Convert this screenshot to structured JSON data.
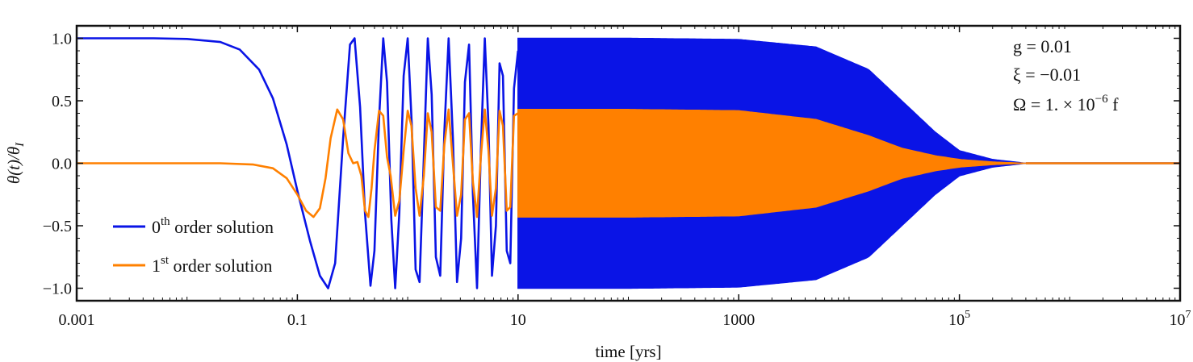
{
  "chart_data": {
    "type": "line",
    "x_scale": "log",
    "xlim": [
      0.001,
      10000000
    ],
    "ylim": [
      -1.1,
      1.1
    ],
    "xlabel": "time [yrs]",
    "ylabel": "θ(t)/θ",
    "ylabel_sub": "I",
    "x_ticks": [
      {
        "value": 0.001,
        "base": "0.001",
        "sup": ""
      },
      {
        "value": 0.1,
        "base": "0.1",
        "sup": ""
      },
      {
        "value": 10,
        "base": "10",
        "sup": ""
      },
      {
        "value": 1000,
        "base": "1000",
        "sup": ""
      },
      {
        "value": 100000,
        "base": "10",
        "sup": "5"
      },
      {
        "value": 10000000,
        "base": "10",
        "sup": "7"
      }
    ],
    "y_ticks": [
      {
        "value": 1.0,
        "label": "1.0"
      },
      {
        "value": 0.5,
        "label": "0.5"
      },
      {
        "value": 0.0,
        "label": "0.0"
      },
      {
        "value": -0.5,
        "label": "−0.5"
      },
      {
        "value": -1.0,
        "label": "−1.0"
      }
    ],
    "grid": false,
    "legend_position": "bottom-left",
    "annotations": {
      "g": {
        "text": "g = 0.01"
      },
      "xi": {
        "text": "ξ = −0.01"
      },
      "omega": {
        "pre": "Ω = 1. × 10",
        "sup": "−6",
        "post": " f"
      }
    },
    "series": [
      {
        "name_base": "0",
        "name_sup": "th",
        "name_rest": " order solution",
        "color": "#0a14e6",
        "envelope": [
          [
            0.001,
            1.0
          ],
          [
            0.02,
            1.0
          ],
          [
            10,
            1.0
          ],
          [
            100,
            1.0
          ],
          [
            1000,
            0.99
          ],
          [
            5000,
            0.93
          ],
          [
            15000,
            0.75
          ],
          [
            30000,
            0.5
          ],
          [
            60000,
            0.25
          ],
          [
            100000,
            0.1
          ],
          [
            200000,
            0.03
          ],
          [
            400000,
            0.0
          ],
          [
            10000000,
            0.0
          ]
        ],
        "points": [
          [
            0.001,
            1.0
          ],
          [
            0.005,
            1.0
          ],
          [
            0.01,
            0.995
          ],
          [
            0.02,
            0.97
          ],
          [
            0.03,
            0.91
          ],
          [
            0.045,
            0.75
          ],
          [
            0.06,
            0.52
          ],
          [
            0.08,
            0.15
          ],
          [
            0.1,
            -0.22
          ],
          [
            0.13,
            -0.62
          ],
          [
            0.16,
            -0.9
          ],
          [
            0.19,
            -1.0
          ],
          [
            0.22,
            -0.8
          ],
          [
            0.26,
            0.2
          ],
          [
            0.3,
            0.95
          ],
          [
            0.33,
            1.0
          ],
          [
            0.37,
            0.45
          ],
          [
            0.41,
            -0.4
          ],
          [
            0.46,
            -0.98
          ],
          [
            0.5,
            -0.7
          ],
          [
            0.55,
            0.35
          ],
          [
            0.6,
            1.0
          ],
          [
            0.65,
            0.65
          ],
          [
            0.71,
            -0.45
          ],
          [
            0.77,
            -1.0
          ],
          [
            0.84,
            -0.4
          ],
          [
            0.92,
            0.7
          ],
          [
            1.0,
            1.0
          ],
          [
            1.09,
            0.3
          ],
          [
            1.18,
            -0.85
          ],
          [
            1.28,
            -0.95
          ],
          [
            1.4,
            0.05
          ],
          [
            1.52,
            1.0
          ],
          [
            1.65,
            0.55
          ],
          [
            1.8,
            -0.75
          ],
          [
            1.97,
            -0.9
          ],
          [
            2.15,
            0.25
          ],
          [
            2.35,
            1.0
          ],
          [
            2.57,
            0.2
          ],
          [
            2.8,
            -0.95
          ],
          [
            3.05,
            -0.6
          ],
          [
            3.3,
            0.65
          ],
          [
            3.6,
            0.95
          ],
          [
            3.9,
            -0.25
          ],
          [
            4.25,
            -1.0
          ],
          [
            4.6,
            0.1
          ],
          [
            5.0,
            1.0
          ],
          [
            5.4,
            0.3
          ],
          [
            5.8,
            -0.9
          ],
          [
            6.3,
            -0.5
          ],
          [
            6.8,
            0.8
          ],
          [
            7.3,
            0.7
          ],
          [
            7.9,
            -0.7
          ],
          [
            8.5,
            -0.8
          ],
          [
            9.2,
            0.6
          ],
          [
            10.0,
            0.9
          ]
        ]
      },
      {
        "name_base": "1",
        "name_sup": "st",
        "name_rest": " order solution",
        "color": "#ff8000",
        "envelope": [
          [
            0.001,
            0.0
          ],
          [
            10,
            0.43
          ],
          [
            100,
            0.43
          ],
          [
            1000,
            0.42
          ],
          [
            5000,
            0.35
          ],
          [
            15000,
            0.22
          ],
          [
            30000,
            0.12
          ],
          [
            60000,
            0.06
          ],
          [
            100000,
            0.03
          ],
          [
            200000,
            0.01
          ],
          [
            400000,
            0.0
          ],
          [
            10000000,
            0.0
          ]
        ],
        "points": [
          [
            0.001,
            0.0
          ],
          [
            0.02,
            0.0
          ],
          [
            0.04,
            -0.01
          ],
          [
            0.06,
            -0.04
          ],
          [
            0.08,
            -0.12
          ],
          [
            0.1,
            -0.25
          ],
          [
            0.12,
            -0.38
          ],
          [
            0.14,
            -0.43
          ],
          [
            0.16,
            -0.36
          ],
          [
            0.18,
            -0.12
          ],
          [
            0.2,
            0.2
          ],
          [
            0.23,
            0.43
          ],
          [
            0.26,
            0.35
          ],
          [
            0.29,
            0.08
          ],
          [
            0.32,
            0.0
          ],
          [
            0.35,
            0.01
          ],
          [
            0.38,
            -0.1
          ],
          [
            0.41,
            -0.38
          ],
          [
            0.44,
            -0.43
          ],
          [
            0.47,
            -0.2
          ],
          [
            0.5,
            0.1
          ],
          [
            0.55,
            0.42
          ],
          [
            0.6,
            0.38
          ],
          [
            0.65,
            0.05
          ],
          [
            0.7,
            -0.1
          ],
          [
            0.77,
            -0.42
          ],
          [
            0.84,
            -0.3
          ],
          [
            0.92,
            0.1
          ],
          [
            1.0,
            0.42
          ],
          [
            1.08,
            0.3
          ],
          [
            1.18,
            -0.2
          ],
          [
            1.28,
            -0.42
          ],
          [
            1.4,
            -0.1
          ],
          [
            1.52,
            0.4
          ],
          [
            1.65,
            0.25
          ],
          [
            1.8,
            -0.35
          ],
          [
            1.97,
            -0.38
          ],
          [
            2.15,
            0.15
          ],
          [
            2.35,
            0.43
          ],
          [
            2.57,
            0.0
          ],
          [
            2.8,
            -0.42
          ],
          [
            3.05,
            -0.25
          ],
          [
            3.3,
            0.35
          ],
          [
            3.6,
            0.4
          ],
          [
            3.9,
            -0.15
          ],
          [
            4.25,
            -0.43
          ],
          [
            4.6,
            0.05
          ],
          [
            5.0,
            0.43
          ],
          [
            5.4,
            0.1
          ],
          [
            5.8,
            -0.42
          ],
          [
            6.3,
            -0.2
          ],
          [
            6.8,
            0.42
          ],
          [
            7.3,
            0.3
          ],
          [
            7.9,
            -0.38
          ],
          [
            8.5,
            -0.35
          ],
          [
            9.2,
            0.38
          ],
          [
            10.0,
            0.4
          ]
        ]
      }
    ]
  }
}
